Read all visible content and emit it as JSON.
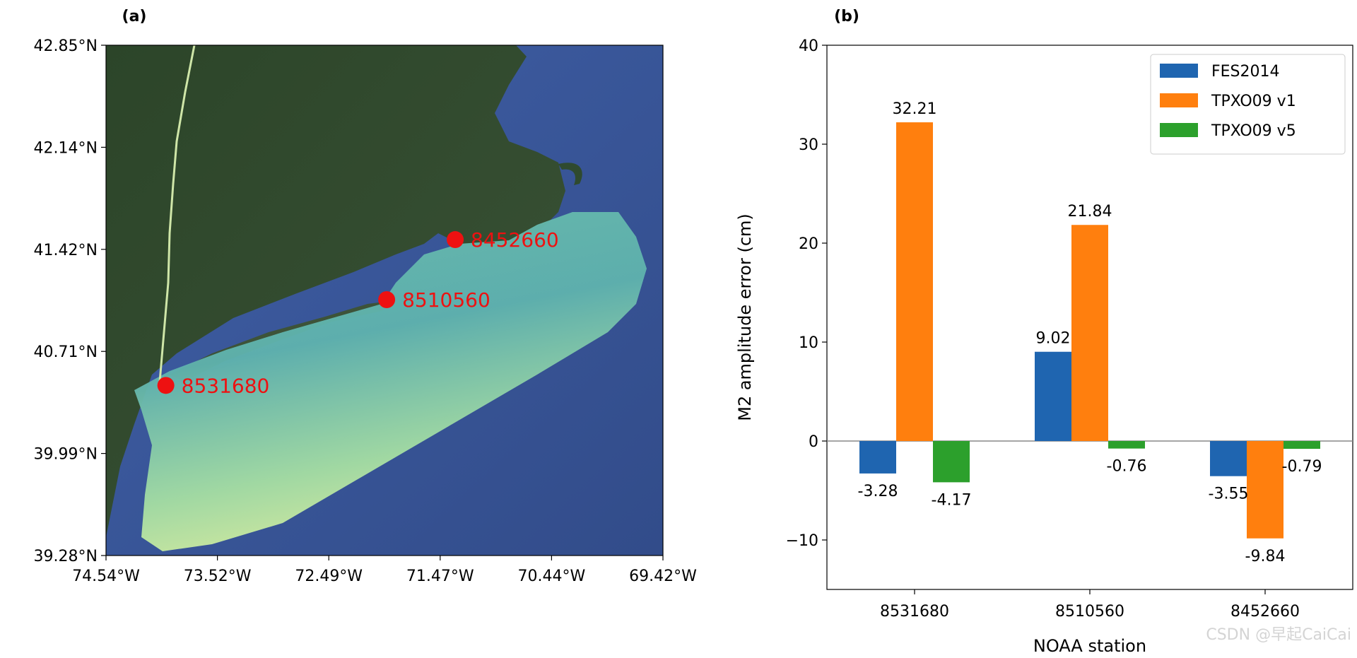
{
  "panel_a": {
    "label": "(a)",
    "lat_ticks": [
      "42.85°N",
      "42.14°N",
      "41.42°N",
      "40.71°N",
      "39.99°N",
      "39.28°N"
    ],
    "lon_ticks": [
      "74.54°W",
      "73.52°W",
      "72.49°W",
      "71.47°W",
      "70.44°W",
      "69.42°W"
    ],
    "extent": {
      "lon_min": -74.54,
      "lon_max": -69.42,
      "lat_min": 39.28,
      "lat_max": 42.85
    },
    "stations": [
      {
        "id": "8531680",
        "lon": -73.99,
        "lat": 40.47
      },
      {
        "id": "8510560",
        "lon": -71.96,
        "lat": 41.07
      },
      {
        "id": "8452660",
        "lon": -71.33,
        "lat": 41.49
      }
    ],
    "colors": {
      "ocean": "#3d5a9a",
      "land": "#2f4a2f",
      "model_domain": "#7fcfb0",
      "station_marker": "#ee1111"
    }
  },
  "panel_b": {
    "label": "(b)",
    "watermark": "CSDN @早起CaiCai",
    "chart_data": {
      "type": "bar",
      "xlabel": "NOAA station",
      "ylabel": "M2 amplitude error (cm)",
      "categories": [
        "8531680",
        "8510560",
        "8452660"
      ],
      "ylim": [
        -15,
        40
      ],
      "yticks": [
        -10,
        0,
        10,
        20,
        30,
        40
      ],
      "ytick_labels": [
        "−10",
        "0",
        "10",
        "20",
        "30",
        "40"
      ],
      "legend_position": "top-right",
      "series": [
        {
          "name": "FES2014",
          "color": "#1f65b0",
          "values": [
            -3.28,
            9.02,
            -3.55
          ],
          "labels": [
            "-3.28",
            "9.02",
            "-3.55"
          ]
        },
        {
          "name": "TPXO09 v1",
          "color": "#ff7f0e",
          "values": [
            32.21,
            21.84,
            -9.84
          ],
          "labels": [
            "32.21",
            "21.84",
            "-9.84"
          ]
        },
        {
          "name": "TPXO09 v5",
          "color": "#2ca02c",
          "values": [
            -4.17,
            -0.76,
            -0.79
          ],
          "labels": [
            "-4.17",
            "-0.76",
            "-0.79"
          ]
        }
      ]
    }
  }
}
